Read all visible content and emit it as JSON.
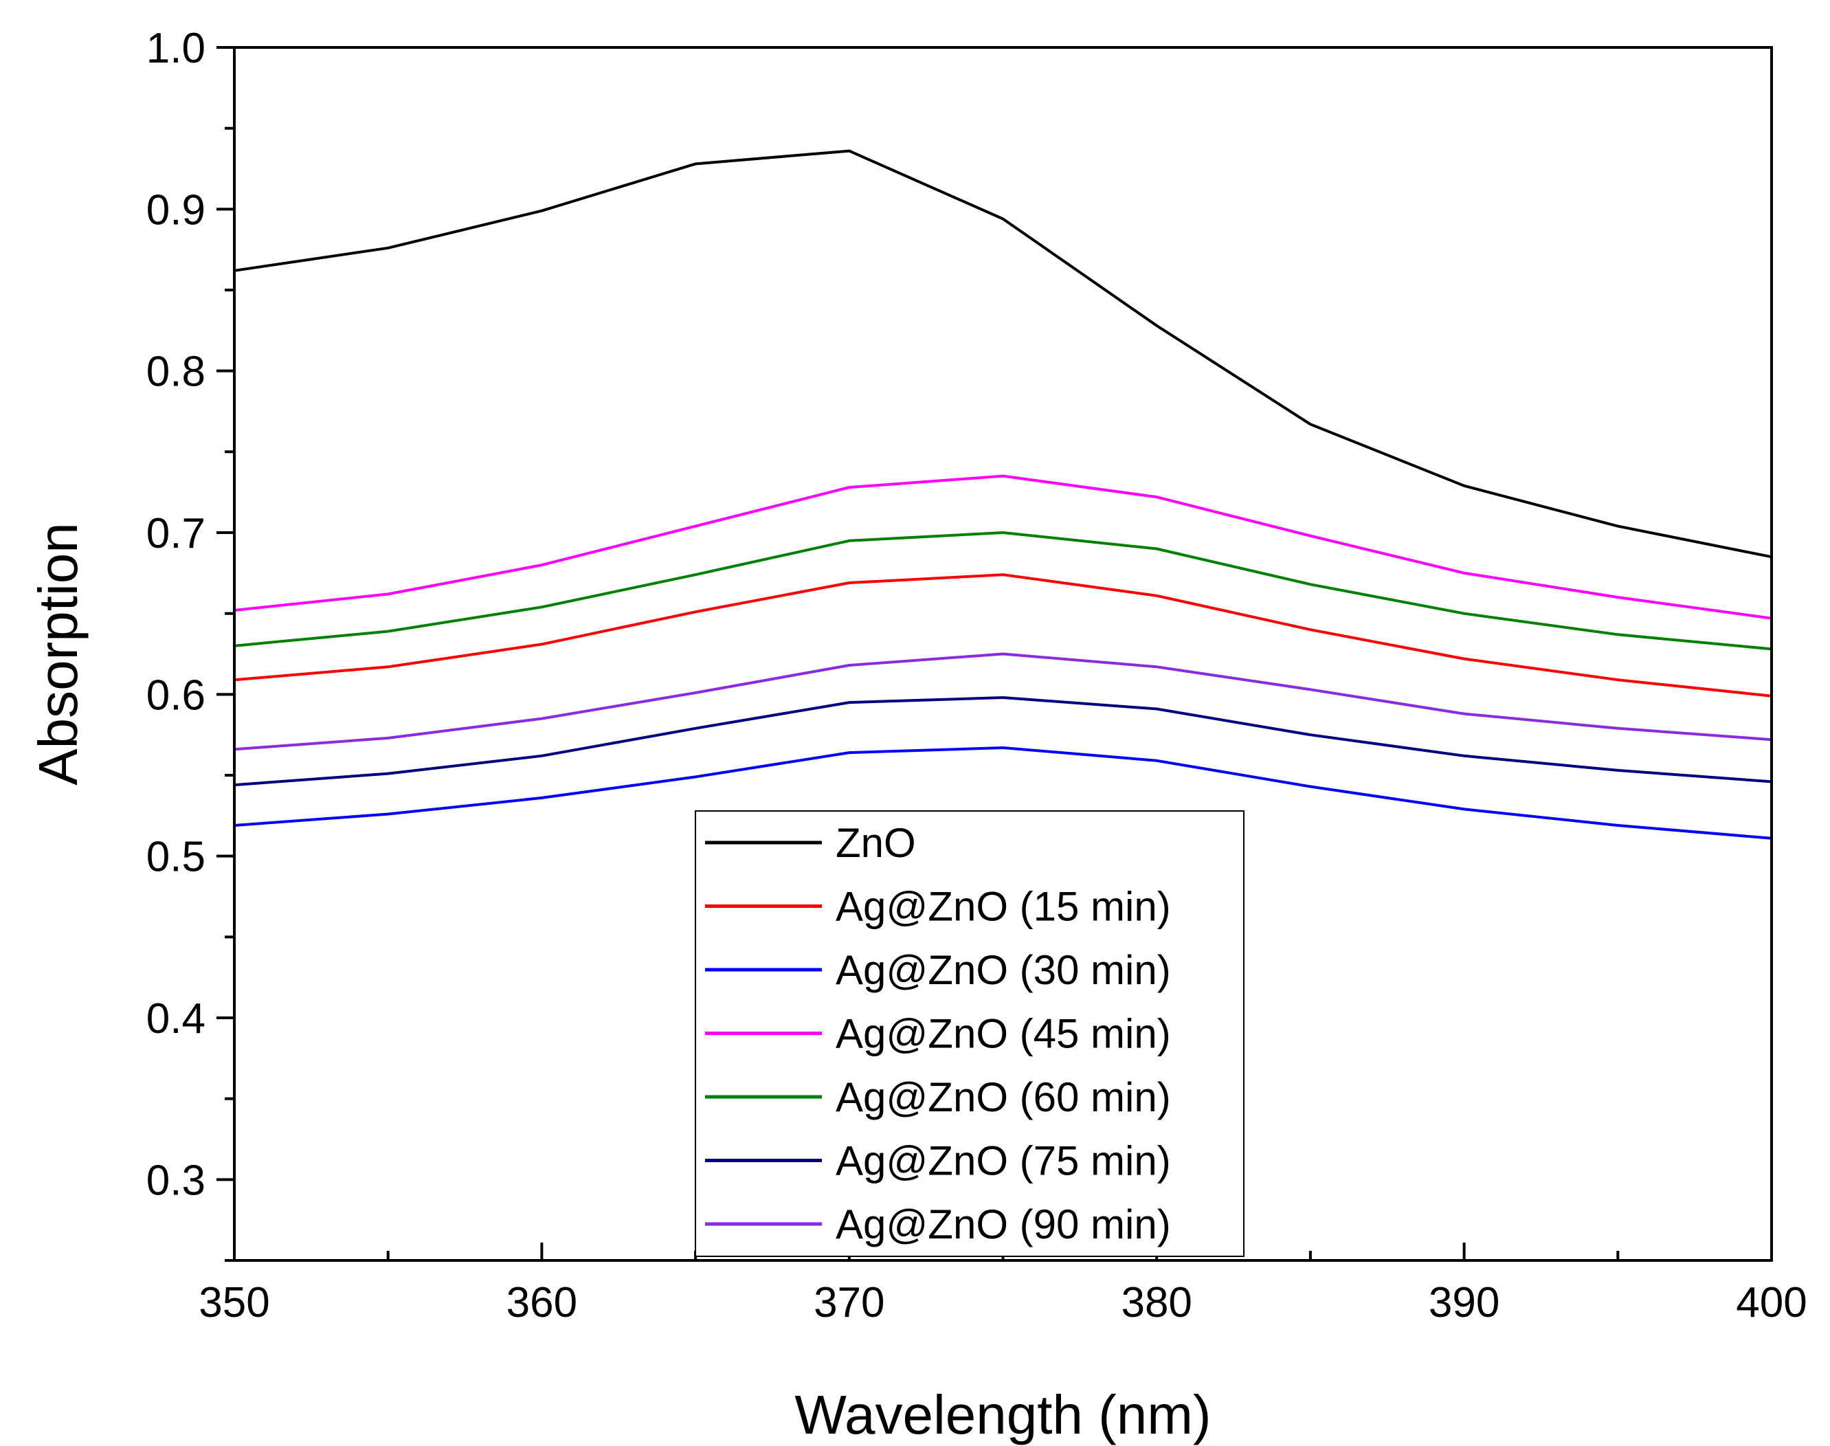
{
  "chart_data": {
    "type": "line",
    "title": "",
    "xlabel": "Wavelength (nm)",
    "ylabel": "Absorption",
    "xlim": [
      350,
      400
    ],
    "ylim": [
      0.25,
      1.0
    ],
    "x": [
      350,
      355,
      360,
      365,
      370,
      375,
      380,
      385,
      390,
      395,
      400
    ],
    "x_ticks": [
      350,
      360,
      370,
      380,
      390,
      400
    ],
    "x_tick_labels": [
      "350",
      "360",
      "370",
      "380",
      "390",
      "400"
    ],
    "y_ticks": [
      0.3,
      0.4,
      0.5,
      0.6,
      0.7,
      0.8,
      0.9,
      1.0
    ],
    "y_tick_labels": [
      "0.3",
      "0.4",
      "0.5",
      "0.6",
      "0.7",
      "0.8",
      "0.9",
      "1.0"
    ],
    "grid": false,
    "legend_position": "bottom-center",
    "series": [
      {
        "name": "ZnO",
        "color": "#000000",
        "values": [
          0.862,
          0.876,
          0.899,
          0.928,
          0.936,
          0.894,
          0.828,
          0.767,
          0.729,
          0.704,
          0.685
        ]
      },
      {
        "name": "Ag@ZnO (15 min)",
        "color": "#ff0000",
        "values": [
          0.609,
          0.617,
          0.631,
          0.651,
          0.669,
          0.674,
          0.661,
          0.64,
          0.622,
          0.609,
          0.599
        ]
      },
      {
        "name": "Ag@ZnO (30 min)",
        "color": "#0000ff",
        "values": [
          0.519,
          0.526,
          0.536,
          0.549,
          0.564,
          0.567,
          0.559,
          0.543,
          0.529,
          0.519,
          0.511
        ]
      },
      {
        "name": "Ag@ZnO (45 min)",
        "color": "#ff00ff",
        "values": [
          0.652,
          0.662,
          0.68,
          0.704,
          0.728,
          0.735,
          0.722,
          0.698,
          0.675,
          0.66,
          0.647
        ]
      },
      {
        "name": "Ag@ZnO (60 min)",
        "color": "#008000",
        "values": [
          0.63,
          0.639,
          0.654,
          0.674,
          0.695,
          0.7,
          0.69,
          0.668,
          0.65,
          0.637,
          0.628
        ]
      },
      {
        "name": "Ag@ZnO (75 min)",
        "color": "#000080",
        "values": [
          0.544,
          0.551,
          0.562,
          0.579,
          0.595,
          0.598,
          0.591,
          0.575,
          0.562,
          0.553,
          0.546
        ]
      },
      {
        "name": "Ag@ZnO (90 min)",
        "color": "#8a2be2",
        "values": [
          0.566,
          0.573,
          0.585,
          0.601,
          0.618,
          0.625,
          0.617,
          0.603,
          0.588,
          0.579,
          0.572
        ]
      }
    ]
  }
}
